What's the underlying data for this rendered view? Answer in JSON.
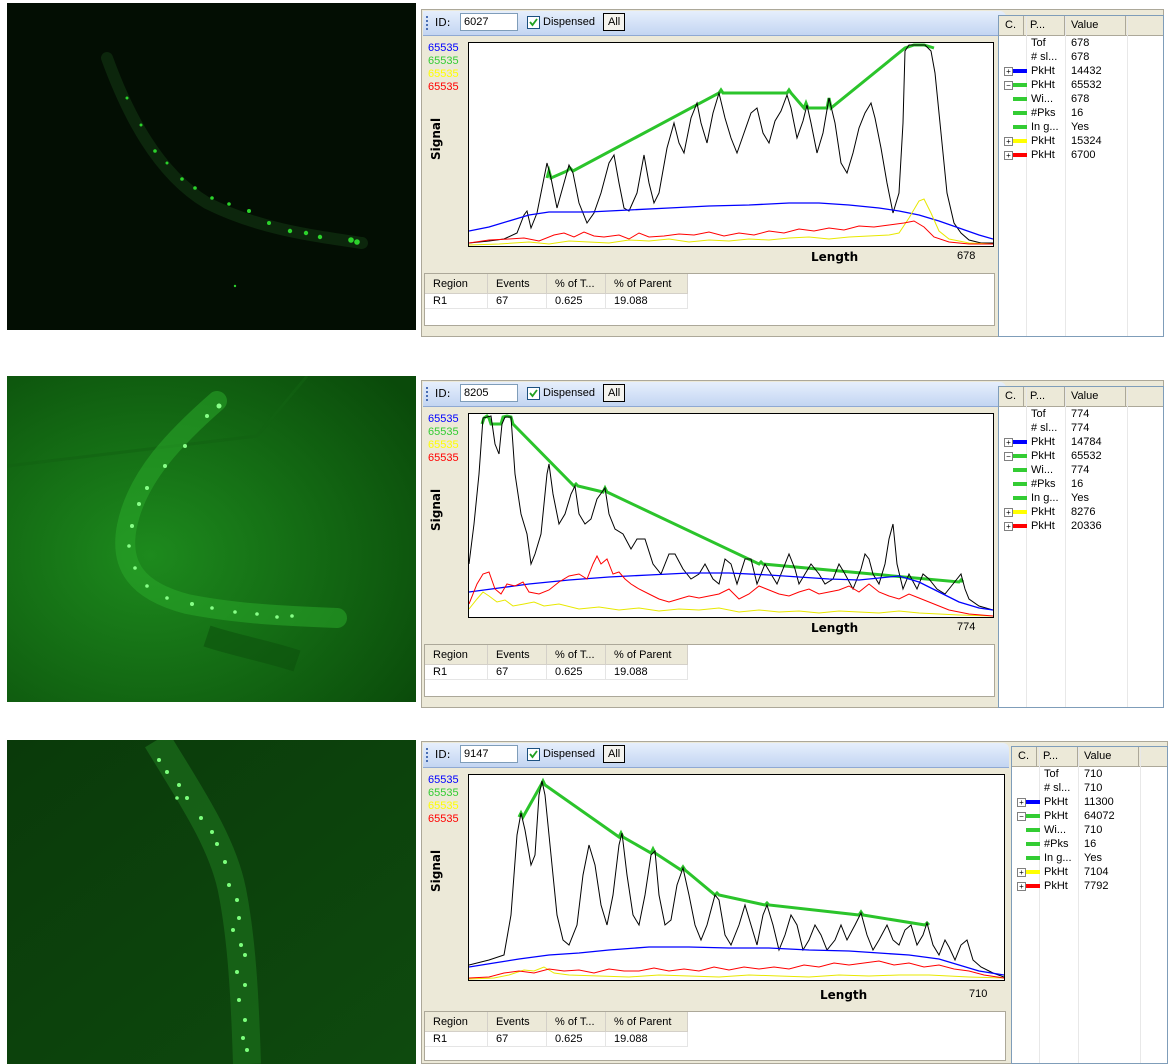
{
  "panels": [
    {
      "toolbar": {
        "id_label": "ID:",
        "id_value": "6027",
        "dispensed_label": "Dispensed",
        "all_label": "All"
      },
      "chart": {
        "legend_values": [
          {
            "text": "65535",
            "color": "#0000ff"
          },
          {
            "text": "65535",
            "color": "#33cc33"
          },
          {
            "text": "65535",
            "color": "#ffff00"
          },
          {
            "text": "65535",
            "color": "#ff0000"
          }
        ],
        "ylabel": "Signal",
        "xlabel": "Length",
        "xmax_label": "678"
      },
      "stats": {
        "headers": [
          "Region",
          "Events",
          "% of T...",
          "% of Parent"
        ],
        "rows": [
          [
            "R1",
            "67",
            "0.625",
            "19.088"
          ]
        ]
      },
      "params": {
        "headers": [
          "C.",
          "P...",
          "Value"
        ],
        "rows": [
          {
            "name": "Tof",
            "value": "678",
            "color": "",
            "expander": ""
          },
          {
            "name": "# sl...",
            "value": "678",
            "color": "",
            "expander": ""
          },
          {
            "name": "PkHt",
            "value": "14432",
            "color": "#0000ff",
            "expander": "+"
          },
          {
            "name": "PkHt",
            "value": "65532",
            "color": "#33cc33",
            "expander": "-"
          },
          {
            "name": "Wi...",
            "value": "678",
            "color": "#33cc33",
            "expander": ""
          },
          {
            "name": "#Pks",
            "value": "16",
            "color": "#33cc33",
            "expander": ""
          },
          {
            "name": "In g...",
            "value": "Yes",
            "color": "#33cc33",
            "expander": ""
          },
          {
            "name": "PkHt",
            "value": "15324",
            "color": "#ffff00",
            "expander": "+"
          },
          {
            "name": "PkHt",
            "value": "6700",
            "color": "#ff0000",
            "expander": "+"
          }
        ]
      }
    },
    {
      "toolbar": {
        "id_label": "ID:",
        "id_value": "8205",
        "dispensed_label": "Dispensed",
        "all_label": "All"
      },
      "chart": {
        "legend_values": [
          {
            "text": "65535",
            "color": "#0000ff"
          },
          {
            "text": "65535",
            "color": "#33cc33"
          },
          {
            "text": "65535",
            "color": "#ffff00"
          },
          {
            "text": "65535",
            "color": "#ff0000"
          }
        ],
        "ylabel": "Signal",
        "xlabel": "Length",
        "xmax_label": "774"
      },
      "stats": {
        "headers": [
          "Region",
          "Events",
          "% of T...",
          "% of Parent"
        ],
        "rows": [
          [
            "R1",
            "67",
            "0.625",
            "19.088"
          ]
        ]
      },
      "params": {
        "headers": [
          "C.",
          "P...",
          "Value"
        ],
        "rows": [
          {
            "name": "Tof",
            "value": "774",
            "color": "",
            "expander": ""
          },
          {
            "name": "# sl...",
            "value": "774",
            "color": "",
            "expander": ""
          },
          {
            "name": "PkHt",
            "value": "14784",
            "color": "#0000ff",
            "expander": "+"
          },
          {
            "name": "PkHt",
            "value": "65532",
            "color": "#33cc33",
            "expander": "-"
          },
          {
            "name": "Wi...",
            "value": "774",
            "color": "#33cc33",
            "expander": ""
          },
          {
            "name": "#Pks",
            "value": "16",
            "color": "#33cc33",
            "expander": ""
          },
          {
            "name": "In g...",
            "value": "Yes",
            "color": "#33cc33",
            "expander": ""
          },
          {
            "name": "PkHt",
            "value": "8276",
            "color": "#ffff00",
            "expander": "+"
          },
          {
            "name": "PkHt",
            "value": "20336",
            "color": "#ff0000",
            "expander": "+"
          }
        ]
      }
    },
    {
      "toolbar": {
        "id_label": "ID:",
        "id_value": "9147",
        "dispensed_label": "Dispensed",
        "all_label": "All"
      },
      "chart": {
        "legend_values": [
          {
            "text": "65535",
            "color": "#0000ff"
          },
          {
            "text": "65535",
            "color": "#33cc33"
          },
          {
            "text": "65535",
            "color": "#ffff00"
          },
          {
            "text": "65535",
            "color": "#ff0000"
          }
        ],
        "ylabel": "Signal",
        "xlabel": "Length",
        "xmax_label": "710"
      },
      "stats": {
        "headers": [
          "Region",
          "Events",
          "% of T...",
          "% of Parent"
        ],
        "rows": [
          [
            "R1",
            "67",
            "0.625",
            "19.088"
          ]
        ]
      },
      "params": {
        "headers": [
          "C.",
          "P...",
          "Value"
        ],
        "rows": [
          {
            "name": "Tof",
            "value": "710",
            "color": "",
            "expander": ""
          },
          {
            "name": "# sl...",
            "value": "710",
            "color": "",
            "expander": ""
          },
          {
            "name": "PkHt",
            "value": "11300",
            "color": "#0000ff",
            "expander": "+"
          },
          {
            "name": "PkHt",
            "value": "64072",
            "color": "#33cc33",
            "expander": "-"
          },
          {
            "name": "Wi...",
            "value": "710",
            "color": "#33cc33",
            "expander": ""
          },
          {
            "name": "#Pks",
            "value": "16",
            "color": "#33cc33",
            "expander": ""
          },
          {
            "name": "In g...",
            "value": "Yes",
            "color": "#33cc33",
            "expander": ""
          },
          {
            "name": "PkHt",
            "value": "7104",
            "color": "#ffff00",
            "expander": "+"
          },
          {
            "name": "PkHt",
            "value": "7792",
            "color": "#ff0000",
            "expander": "+"
          }
        ]
      }
    }
  ]
}
